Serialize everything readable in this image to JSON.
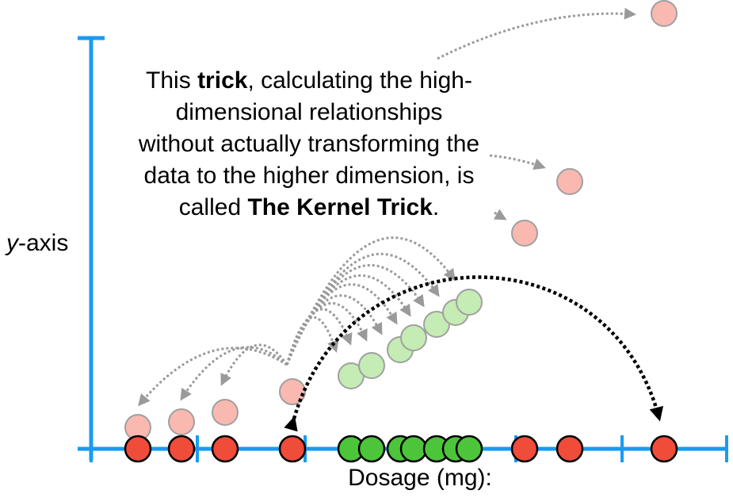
{
  "caption": {
    "line1_pre": "This ",
    "line1_bold": "trick",
    "line1_post": ", calculating the high-",
    "line2": "dimensional relationships",
    "line3": "without actually transforming the",
    "line4": "data to the higher dimension, is",
    "line5_pre": "called ",
    "line5_bold": "The Kernel Trick",
    "line5_post": "."
  },
  "axes": {
    "y_label_italic": "y",
    "y_label_rest": "-axis",
    "x_label": "Dosage (mg):"
  },
  "colors": {
    "axis": "#1a9bf0",
    "red": "#f04c3a",
    "red_faded": "#f9b8b0",
    "green": "#4cc53a",
    "green_faded": "#c4ecb4",
    "arrow_gray": "#9a9a9a",
    "arrow_black": "#000000"
  },
  "observations": {
    "red_dosages": [
      174,
      229,
      284,
      369,
      662,
      719,
      838
    ],
    "green_dosages": [
      443,
      469,
      505,
      522,
      551,
      575,
      592
    ],
    "red_projected_heights": [
      27,
      34,
      46,
      72,
      272,
      337,
      549
    ],
    "green_projected_heights": [
      92,
      105,
      125,
      140,
      157,
      172,
      185
    ]
  }
}
